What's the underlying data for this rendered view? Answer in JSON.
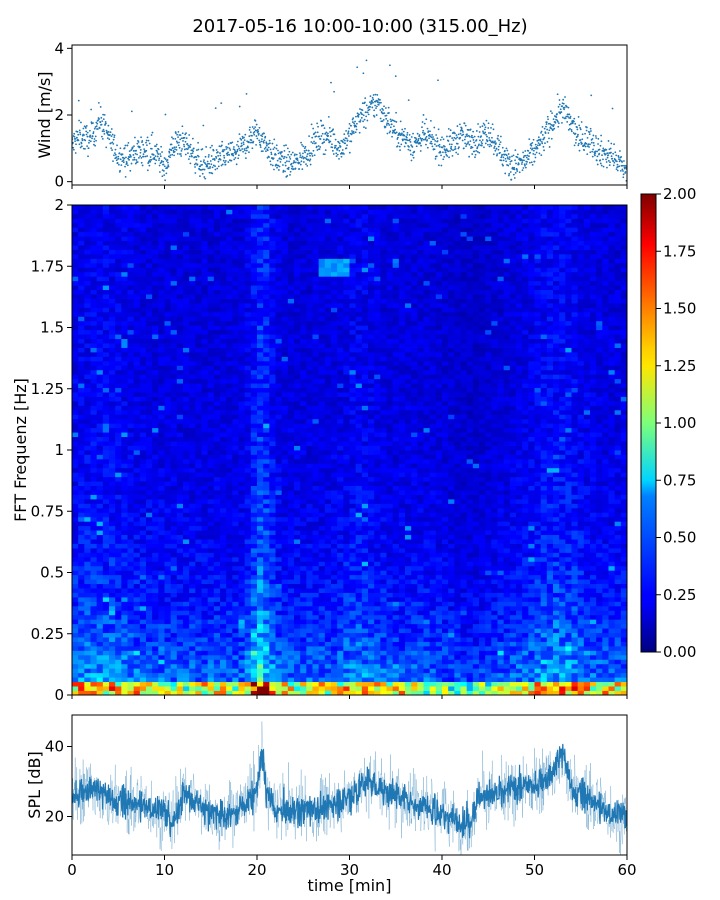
{
  "title": "2017-05-16 10:00-10:00 (315.00_Hz)",
  "chart_data": [
    {
      "type": "scatter",
      "panel": "wind",
      "ylabel": "Wind [m/s]",
      "xlim": [
        0,
        60
      ],
      "ylim": [
        -0.1,
        4.1
      ],
      "yticks": [
        0,
        2,
        4
      ],
      "marker_color": "#1f77b4",
      "keypoints": {
        "x": [
          0,
          1,
          2,
          3,
          4,
          5,
          6,
          7,
          8,
          9,
          10,
          11,
          12,
          13,
          14,
          15,
          16,
          17,
          18,
          19,
          20,
          21,
          22,
          23,
          24,
          25,
          26,
          27,
          28,
          29,
          30,
          31,
          32,
          33,
          34,
          35,
          36,
          37,
          38,
          39,
          40,
          41,
          42,
          43,
          44,
          45,
          46,
          47,
          48,
          49,
          50,
          51,
          52,
          53,
          54,
          55,
          56,
          57,
          58,
          59,
          60
        ],
        "y": [
          1.1,
          1.4,
          1.2,
          1.9,
          1.3,
          0.8,
          0.7,
          0.9,
          1.0,
          0.9,
          0.4,
          1.1,
          1.2,
          0.9,
          0.5,
          0.6,
          0.7,
          0.8,
          0.9,
          1.2,
          1.5,
          1.1,
          0.7,
          0.6,
          0.5,
          0.8,
          1.1,
          1.4,
          1.3,
          1.0,
          1.4,
          1.9,
          2.1,
          2.4,
          1.9,
          1.5,
          1.3,
          1.1,
          1.4,
          1.2,
          1.0,
          1.1,
          1.4,
          1.2,
          1.3,
          1.5,
          1.1,
          0.6,
          0.5,
          0.6,
          0.9,
          1.3,
          1.8,
          2.2,
          1.7,
          1.2,
          1.3,
          0.9,
          0.8,
          0.6,
          0.3
        ]
      }
    },
    {
      "type": "heatmap",
      "panel": "spectrogram",
      "ylabel": "FFT Frequenz [Hz]",
      "xlim": [
        0,
        60
      ],
      "ylim": [
        0,
        2
      ],
      "yticks": [
        0,
        0.25,
        0.5,
        0.75,
        1,
        1.25,
        1.5,
        1.75,
        2
      ],
      "colorscale": "jet",
      "colorbar": {
        "min": 0.0,
        "max": 2.0,
        "ticks": [
          "0.00",
          "0.25",
          "0.50",
          "0.75",
          "1.00",
          "1.25",
          "1.50",
          "1.75",
          "2.00"
        ]
      }
    },
    {
      "type": "line",
      "panel": "spl",
      "ylabel": "SPL [dB]",
      "xlabel": "time [min]",
      "xlim": [
        0,
        60
      ],
      "ylim": [
        9,
        49
      ],
      "yticks": [
        20,
        40
      ],
      "xticks": [
        0,
        10,
        20,
        30,
        40,
        50,
        60
      ],
      "line_color": "#1f77b4",
      "keypoints": {
        "x": [
          0,
          2,
          4,
          6,
          8,
          10,
          11,
          12,
          14,
          16,
          18,
          19,
          20,
          20.5,
          21,
          22,
          24,
          26,
          28,
          30,
          32,
          33,
          34,
          36,
          38,
          40,
          42,
          43,
          44,
          46,
          48,
          50,
          52,
          53,
          54,
          56,
          58,
          60
        ],
        "y": [
          26,
          28,
          25,
          24,
          23,
          21,
          18,
          27,
          23,
          20,
          22,
          25,
          27,
          39,
          27,
          22,
          22,
          22,
          23,
          26,
          30,
          29,
          27,
          25,
          23,
          21,
          18,
          18,
          26,
          26,
          28,
          29,
          32,
          38,
          28,
          25,
          21,
          20
        ]
      }
    }
  ]
}
